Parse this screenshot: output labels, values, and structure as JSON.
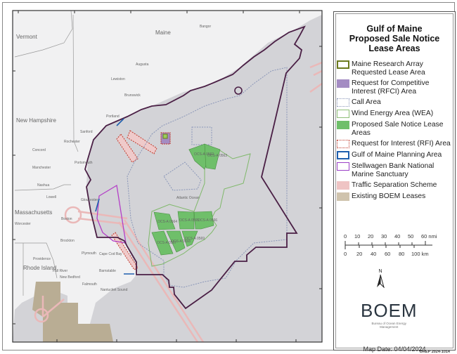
{
  "legend": {
    "title_lines": [
      "Gulf of Maine",
      "Proposed Sale Notice",
      "Lease Areas"
    ],
    "items": [
      {
        "label": "Maine Research Array Requested Lease Area",
        "color": "#6b7a1e",
        "style": "outline"
      },
      {
        "label": "Request for Competitive Interest (RFCI) Area",
        "color": "#a48cc3",
        "style": "fill"
      },
      {
        "label": "Call Area",
        "color": "#8a96b8",
        "style": "dotted"
      },
      {
        "label": "Wind Energy Area (WEA)",
        "color": "#8fbf78",
        "style": "outline"
      },
      {
        "label": "Proposed Sale Notice Lease Areas",
        "color": "#6fbf6a",
        "style": "fill"
      },
      {
        "label": "Request for Interest (RFI) Area",
        "color": "#c0392b",
        "style": "dotted"
      },
      {
        "label": "Gulf of Maine Planning Area",
        "color": "#1f5fae",
        "style": "outline"
      },
      {
        "label": "Stellwagen Bank National Marine Sanctuary",
        "color": "#9b3fc7",
        "style": "outline"
      },
      {
        "label": "Traffic Separation Scheme",
        "color": "#efc4c4",
        "style": "fill"
      },
      {
        "label": "Existing BOEM Leases",
        "color": "#cfc3ad",
        "style": "fill"
      }
    ]
  },
  "scale_bar": {
    "nmi_ticks": [
      "0",
      "10",
      "20",
      "30",
      "40",
      "50",
      "60 nmi"
    ],
    "km_ticks": [
      "0",
      "20",
      "40",
      "60",
      "80",
      "100 km"
    ]
  },
  "north_arrow": {
    "label": "N"
  },
  "logo": {
    "text": "BOEM",
    "subtitle_lines": [
      "Bureau of Ocean Energy",
      "Management"
    ]
  },
  "map_date": "Map Date: 04/04/2024",
  "map_id": "OREP 2024-1014",
  "map": {
    "states": [
      "Vermont",
      "Maine",
      "New Hampshire",
      "Massachusetts",
      "Rhode Island"
    ],
    "places": [
      "Bangor",
      "Augusta",
      "Lewiston",
      "Brunswick",
      "Portland",
      "Sanford",
      "Rochester",
      "Concord",
      "Manchester",
      "Portsmouth",
      "Nashua",
      "Lowell",
      "Gloucester",
      "Boston",
      "Worcester",
      "Brockton",
      "Plymouth",
      "Providence",
      "Fall River",
      "New Bedford",
      "Falmouth",
      "Barnstable"
    ],
    "water_labels": [
      "Atlantic Ocean",
      "Cape Cod Bay",
      "Nantucket Sound"
    ],
    "lease_areas": [
      "OCS-A 0562",
      "OCS-A 0563",
      "OCS-A 0564",
      "OCS-A 0565",
      "OCS-A 0566",
      "OCS-A 0567",
      "OCS-A 0568",
      "OCS-A 0569"
    ],
    "colors": {
      "ocean": "#d4d4d8",
      "land": "#f2f2f2",
      "planning_area": "#4a1f45",
      "lease_fill": "#6fbf6a",
      "wea_outline": "#7fb86a"
    }
  }
}
